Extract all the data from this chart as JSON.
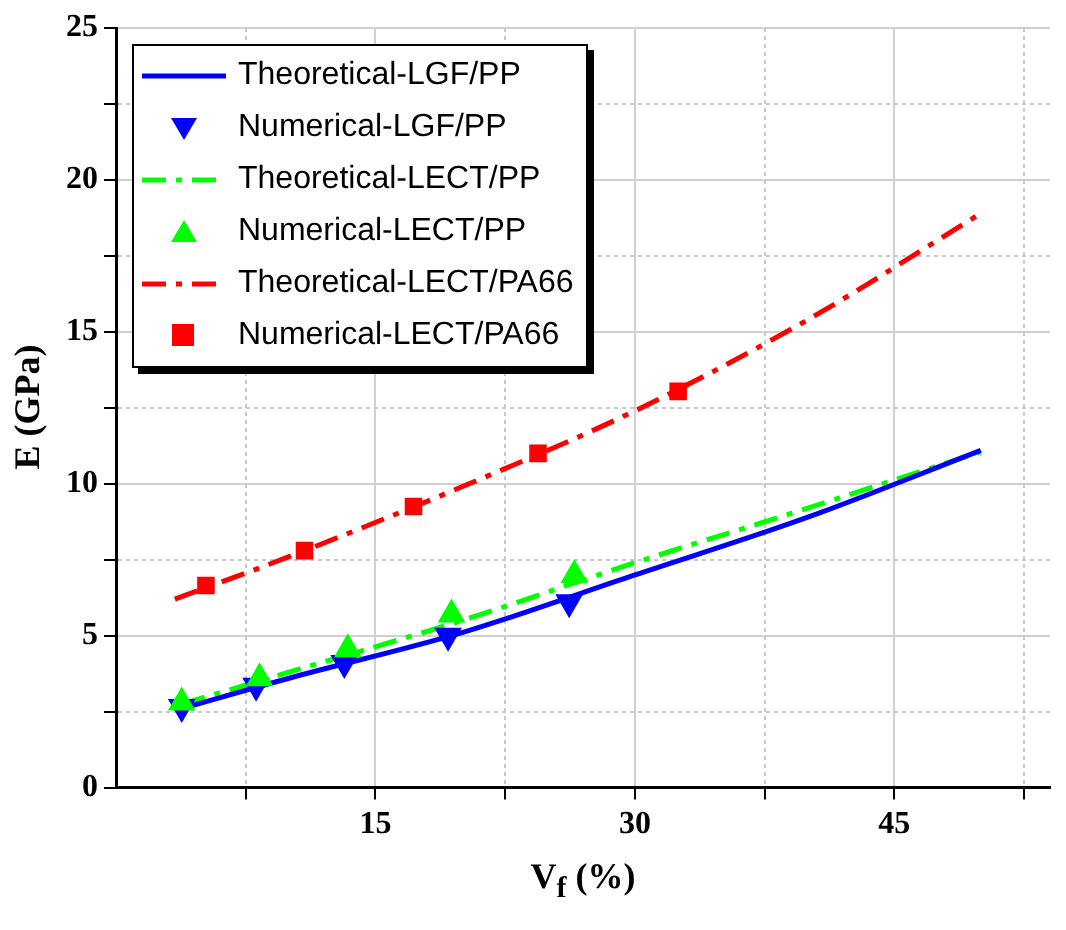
{
  "chart_data": {
    "type": "line",
    "xlabel": "V$_{f}$ (%)",
    "ylabel": "E (GPa)",
    "xlim": [
      0,
      54
    ],
    "xticks": [
      {
        "value": 7.5,
        "label": null
      },
      15,
      {
        "value": 22.5,
        "label": null
      },
      30,
      {
        "value": 37.5,
        "label": null
      },
      45,
      {
        "value": 52.5,
        "label": null
      }
    ],
    "ylim": [
      0,
      25
    ],
    "yticks": [
      0,
      {
        "value": 2.5,
        "label": null
      },
      5,
      {
        "value": 7.5,
        "label": null
      },
      10,
      {
        "value": 12.5,
        "label": null
      },
      15,
      {
        "value": 17.5,
        "label": null
      },
      20,
      {
        "value": 22.5,
        "label": null
      },
      25
    ],
    "grid": true,
    "legend": "top left",
    "series": [
      {
        "name": "Theoretical-LGF/PP",
        "color": "#0000ff",
        "line_style": "solid",
        "x": [
          3.8,
          10,
          20,
          30,
          40,
          50
        ],
        "values": [
          2.6,
          3.6,
          5.1,
          7.0,
          8.9,
          11.1
        ]
      },
      {
        "name": "Numerical-LGF/PP",
        "type": "scatter",
        "color": "#0000ff",
        "marker": "triangle-down",
        "x": [
          3.8,
          8.1,
          13.2,
          19.2,
          26.2
        ],
        "values": [
          2.65,
          3.35,
          4.1,
          5.0,
          6.1
        ]
      },
      {
        "name": "Theoretical-LECT/PP",
        "color": "#00ff00",
        "line_style": "dashed",
        "x": [
          3.8,
          10,
          20,
          30,
          40,
          50
        ],
        "values": [
          2.75,
          3.8,
          5.5,
          7.4,
          9.2,
          11.05
        ]
      },
      {
        "name": "Numerical-LECT/PP",
        "type": "scatter",
        "color": "#00ff00",
        "marker": "triangle",
        "x": [
          3.8,
          8.3,
          13.4,
          19.4,
          26.5
        ],
        "values": [
          2.8,
          3.6,
          4.55,
          5.7,
          7.0
        ]
      },
      {
        "name": "Theoretical-LECT/PA66",
        "color": "#ff0000",
        "line_style": "dashed",
        "x": [
          3.4,
          10,
          20,
          30,
          40,
          50
        ],
        "values": [
          6.2,
          7.6,
          9.9,
          12.4,
          15.4,
          18.9
        ]
      },
      {
        "name": "Numerical-LECT/PA66",
        "type": "scatter",
        "color": "#ff0000",
        "marker": "square",
        "x": [
          5.2,
          10.9,
          17.2,
          24.4,
          32.5
        ],
        "values": [
          6.65,
          7.8,
          9.25,
          11.0,
          13.04
        ]
      }
    ]
  }
}
